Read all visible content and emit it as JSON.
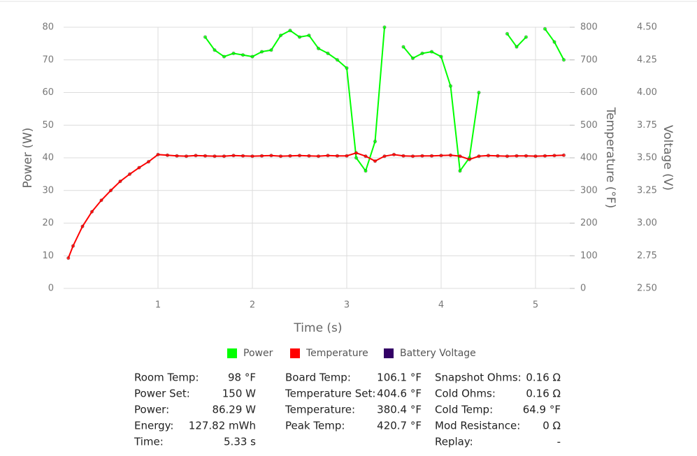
{
  "chart_data": {
    "type": "line",
    "x_label": "Time (s)",
    "y_label": "Power (W)",
    "y2_label": "Temperature (°F)",
    "y3_label": "Voltage (V)",
    "x": [
      0.05,
      0.1,
      0.2,
      0.3,
      0.4,
      0.5,
      0.6,
      0.7,
      0.8,
      0.9,
      1.0,
      1.1,
      1.2,
      1.3,
      1.4,
      1.5,
      1.6,
      1.7,
      1.8,
      1.9,
      2.0,
      2.1,
      2.2,
      2.3,
      2.4,
      2.5,
      2.6,
      2.7,
      2.8,
      2.9,
      3.0,
      3.1,
      3.2,
      3.3,
      3.4,
      3.5,
      3.6,
      3.7,
      3.8,
      3.9,
      4.0,
      4.1,
      4.2,
      4.3,
      4.4,
      4.5,
      4.6,
      4.7,
      4.8,
      4.9,
      5.0,
      5.1,
      5.2,
      5.3
    ],
    "series": [
      {
        "name": "Power",
        "color": "#00ff00",
        "axis": "y",
        "values": [
          null,
          null,
          null,
          null,
          null,
          null,
          null,
          null,
          null,
          null,
          null,
          null,
          null,
          null,
          null,
          77,
          73,
          71,
          72,
          71.5,
          71,
          72.5,
          73,
          77.5,
          79,
          77,
          77.5,
          73.5,
          72,
          70,
          67.5,
          40,
          36,
          45,
          80,
          null,
          74,
          70.5,
          72,
          72.5,
          71,
          62,
          36,
          40,
          60,
          null,
          null,
          78,
          74,
          77,
          null,
          79.5,
          75.5,
          70
        ]
      },
      {
        "name": "Temperature",
        "color": "#ff0000",
        "axis": "y2",
        "values": [
          93,
          130,
          190,
          235,
          270,
          300,
          328,
          350,
          370,
          388,
          410,
          408,
          406,
          405,
          407,
          406,
          405,
          405,
          407,
          406,
          405,
          406,
          407,
          405,
          406,
          407,
          406,
          405,
          407,
          406,
          406,
          415,
          405,
          390,
          405,
          410,
          406,
          405,
          406,
          406,
          407,
          408,
          405,
          395,
          405,
          407,
          406,
          405,
          406,
          406,
          405,
          406,
          407,
          408
        ]
      },
      {
        "name": "Battery Voltage",
        "color": "#330066",
        "axis": "y3",
        "values": [
          null,
          null,
          null,
          null,
          null,
          null,
          null,
          null,
          null,
          null,
          null,
          null,
          null,
          null,
          null,
          null,
          null,
          null,
          null,
          null,
          null,
          null,
          null,
          null,
          null,
          null,
          null,
          null,
          null,
          null,
          null,
          null,
          null,
          null,
          null,
          null,
          null,
          null,
          null,
          null,
          null,
          null,
          null,
          null,
          null,
          null,
          null,
          null,
          null,
          null,
          null,
          null,
          null,
          null
        ]
      }
    ],
    "xlim": [
      0,
      5.4
    ],
    "xticks": [
      1,
      2,
      3,
      4,
      5
    ],
    "ylim": [
      0,
      80
    ],
    "yticks": [
      0,
      10,
      20,
      30,
      40,
      50,
      60,
      70,
      80
    ],
    "y2lim": [
      0,
      800
    ],
    "y2ticks": [
      0,
      100,
      200,
      300,
      400,
      500,
      600,
      700,
      800
    ],
    "y3lim": [
      2.5,
      4.5
    ],
    "y3ticks": [
      {
        "value": 2.5,
        "label": "2.50"
      },
      2.75,
      {
        "value": 3.0,
        "label": "3.00"
      },
      3.25,
      {
        "value": 3.5,
        "label": "3.50"
      },
      3.75,
      {
        "value": 4.0,
        "label": "4.00"
      },
      4.25,
      {
        "value": 4.5,
        "label": "4.50"
      }
    ],
    "grid": true,
    "legend": "bottom"
  },
  "stats": [
    [
      [
        "Room Temp:",
        "98 °F"
      ],
      [
        "Power Set:",
        "150 W"
      ],
      [
        "Power:",
        "86.29 W"
      ],
      [
        "Energy:",
        "127.82 mWh"
      ],
      [
        "Time:",
        "5.33 s"
      ]
    ],
    [
      [
        "Board Temp:",
        "106.1 °F"
      ],
      [
        "Temperature Set:",
        "404.6 °F"
      ],
      [
        "Temperature:",
        "380.4 °F"
      ],
      [
        "Peak Temp:",
        "420.7 °F"
      ]
    ],
    [
      [
        "Snapshot Ohms:",
        "0.16 Ω"
      ],
      [
        "Cold Ohms:",
        "0.16 Ω"
      ],
      [
        "Cold Temp:",
        "64.9 °F"
      ],
      [
        "Mod Resistance:",
        "0 Ω"
      ],
      [
        "Replay:",
        "-"
      ]
    ]
  ]
}
